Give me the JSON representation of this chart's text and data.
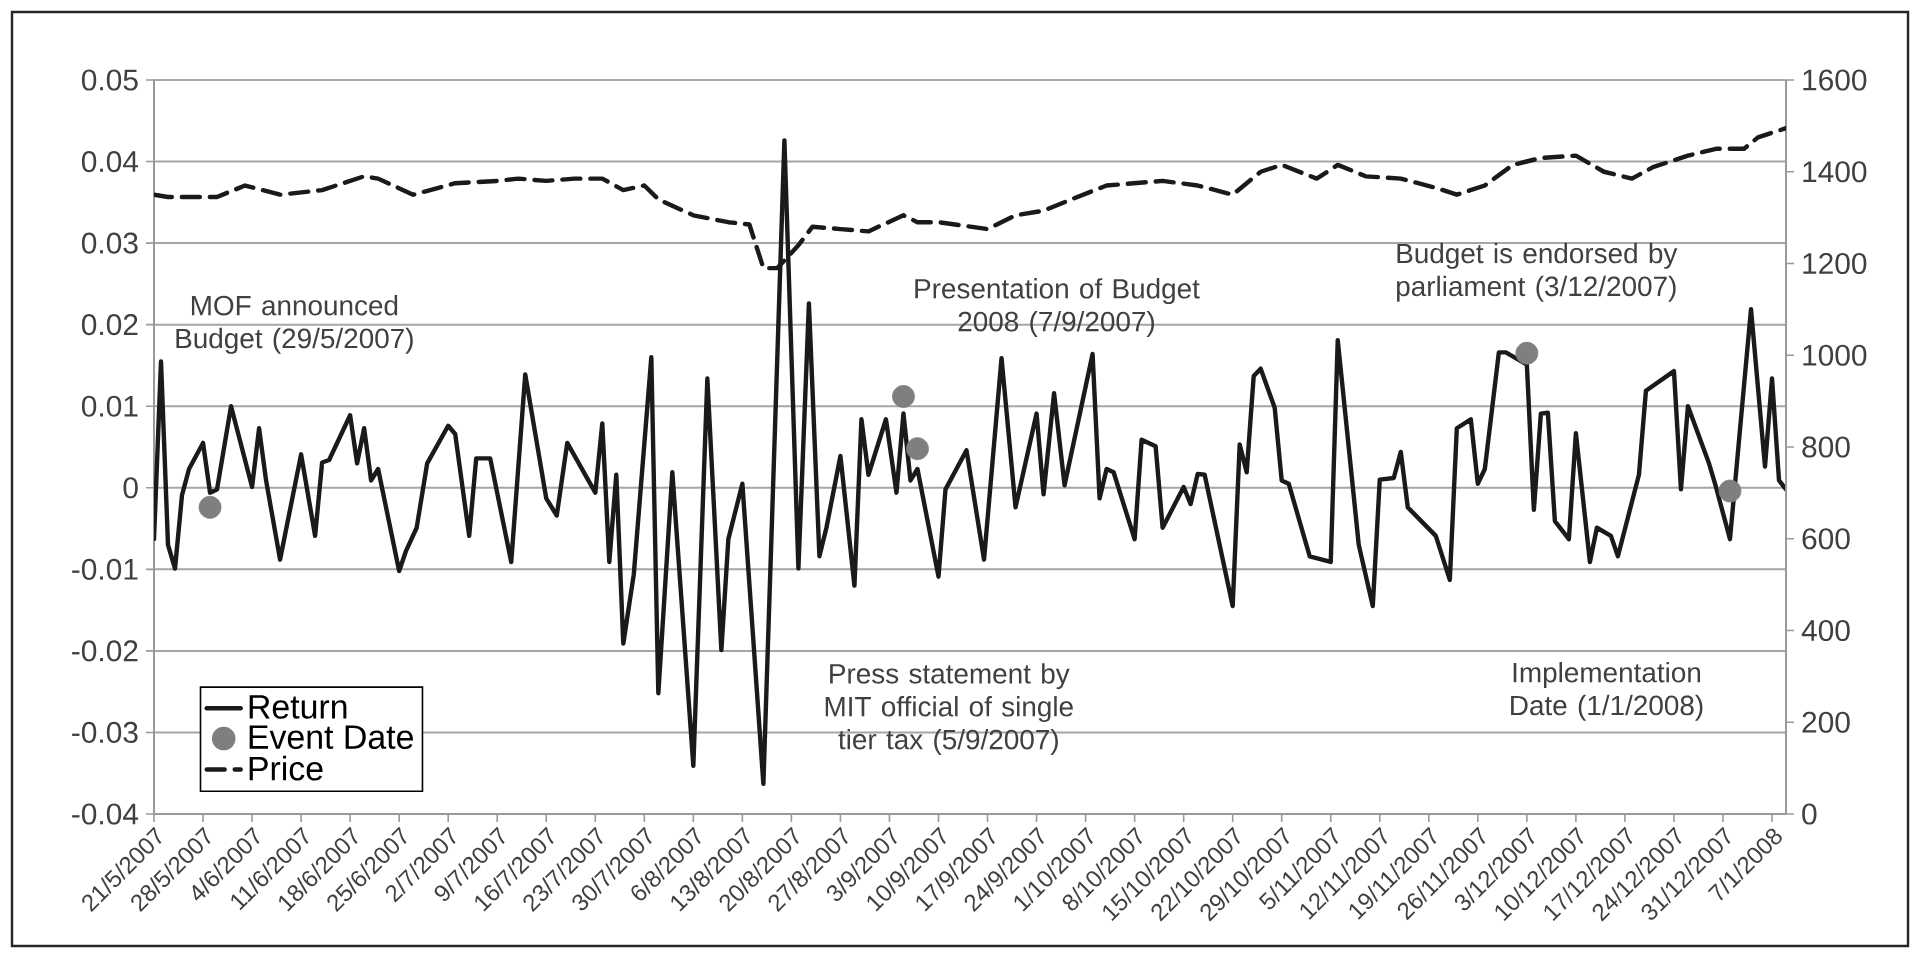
{
  "chart_data": {
    "type": "line",
    "xlim": [
      "2007-05-21",
      "2008-01-09"
    ],
    "xticks": [
      {
        "value": "2007-05-21",
        "label": "21/5/2007"
      },
      {
        "value": "2007-05-28",
        "label": "28/5/2007"
      },
      {
        "value": "2007-06-04",
        "label": "4/6/2007"
      },
      {
        "value": "2007-06-11",
        "label": "11/6/2007"
      },
      {
        "value": "2007-06-18",
        "label": "18/6/2007"
      },
      {
        "value": "2007-06-25",
        "label": "25/6/2007"
      },
      {
        "value": "2007-07-02",
        "label": "2/7/2007"
      },
      {
        "value": "2007-07-09",
        "label": "9/7/2007"
      },
      {
        "value": "2007-07-16",
        "label": "16/7/2007"
      },
      {
        "value": "2007-07-23",
        "label": "23/7/2007"
      },
      {
        "value": "2007-07-30",
        "label": "30/7/2007"
      },
      {
        "value": "2007-08-06",
        "label": "6/8/2007"
      },
      {
        "value": "2007-08-13",
        "label": "13/8/2007"
      },
      {
        "value": "2007-08-20",
        "label": "20/8/2007"
      },
      {
        "value": "2007-08-27",
        "label": "27/8/2007"
      },
      {
        "value": "2007-09-03",
        "label": "3/9/2007"
      },
      {
        "value": "2007-09-10",
        "label": "10/9/2007"
      },
      {
        "value": "2007-09-17",
        "label": "17/9/2007"
      },
      {
        "value": "2007-09-24",
        "label": "24/9/2007"
      },
      {
        "value": "2007-10-01",
        "label": "1/10/2007"
      },
      {
        "value": "2007-10-08",
        "label": "8/10/2007"
      },
      {
        "value": "2007-10-15",
        "label": "15/10/2007"
      },
      {
        "value": "2007-10-22",
        "label": "22/10/2007"
      },
      {
        "value": "2007-10-29",
        "label": "29/10/2007"
      },
      {
        "value": "2007-11-05",
        "label": "5/11/2007"
      },
      {
        "value": "2007-11-12",
        "label": "12/11/2007"
      },
      {
        "value": "2007-11-19",
        "label": "19/11/2007"
      },
      {
        "value": "2007-11-26",
        "label": "26/11/2007"
      },
      {
        "value": "2007-12-03",
        "label": "3/12/2007"
      },
      {
        "value": "2007-12-10",
        "label": "10/12/2007"
      },
      {
        "value": "2007-12-17",
        "label": "17/12/2007"
      },
      {
        "value": "2007-12-24",
        "label": "24/12/2007"
      },
      {
        "value": "2007-12-31",
        "label": "31/12/2007"
      },
      {
        "value": "2008-01-07",
        "label": "7/1/2008"
      }
    ],
    "ylim": [
      -0.04,
      0.05
    ],
    "yticks": [
      -0.04,
      -0.03,
      -0.02,
      -0.01,
      0,
      0.01,
      0.02,
      0.03,
      0.04,
      0.05
    ],
    "y2lim": [
      0,
      1600
    ],
    "y2ticks": [
      0,
      200,
      400,
      600,
      800,
      1000,
      1200,
      1400,
      1600
    ],
    "grid": "y",
    "legend": "bottom left",
    "annotations": [
      "MOF announced Budget (29/5/2007)",
      "Presentation of Budget 2008 (7/9/2007)",
      "Budget is endorsed by parliament (3/12/2007)",
      "Press statement by MIT official of single tier tax (5/9/2007)",
      "Implementation Date (1/1/2008)"
    ],
    "series": [
      {
        "name": "Return",
        "color": "#1a1a1a",
        "x": [
          "2007-05-21",
          "2007-05-22",
          "2007-05-23",
          "2007-05-24",
          "2007-05-25",
          "2007-05-26",
          "2007-05-28",
          "2007-05-29",
          "2007-05-30",
          "2007-06-01",
          "2007-06-04",
          "2007-06-05",
          "2007-06-06",
          "2007-06-08",
          "2007-06-11",
          "2007-06-13",
          "2007-06-14",
          "2007-06-15",
          "2007-06-18",
          "2007-06-19",
          "2007-06-20",
          "2007-06-21",
          "2007-06-22",
          "2007-06-25",
          "2007-06-26",
          "2007-06-27T12:00",
          "2007-06-29",
          "2007-07-02",
          "2007-07-03",
          "2007-07-05",
          "2007-07-06",
          "2007-07-08",
          "2007-07-11",
          "2007-07-13",
          "2007-07-16",
          "2007-07-17T12:00",
          "2007-07-19",
          "2007-07-23",
          "2007-07-24",
          "2007-07-25",
          "2007-07-26",
          "2007-07-27",
          "2007-07-28T12:00",
          "2007-07-31",
          "2007-08-01",
          "2007-08-03",
          "2007-08-06",
          "2007-08-08",
          "2007-08-10",
          "2007-08-11",
          "2007-08-13",
          "2007-08-16",
          "2007-08-19",
          "2007-08-21",
          "2007-08-22T12:00",
          "2007-08-24",
          "2007-08-25",
          "2007-08-27",
          "2007-08-29",
          "2007-08-30",
          "2007-08-31",
          "2007-09-02T12:00",
          "2007-09-04",
          "2007-09-05",
          "2007-09-06",
          "2007-09-07",
          "2007-09-10",
          "2007-09-11",
          "2007-09-14",
          "2007-09-16T12:00",
          "2007-09-19",
          "2007-09-21",
          "2007-09-24",
          "2007-09-25",
          "2007-09-26T12:00",
          "2007-09-28",
          "2007-10-02",
          "2007-10-03",
          "2007-10-04",
          "2007-10-05",
          "2007-10-08",
          "2007-10-09",
          "2007-10-11",
          "2007-10-12",
          "2007-10-15",
          "2007-10-16",
          "2007-10-17",
          "2007-10-18",
          "2007-10-22",
          "2007-10-23",
          "2007-10-24",
          "2007-10-25",
          "2007-10-26",
          "2007-10-28",
          "2007-10-29",
          "2007-10-30",
          "2007-11-02",
          "2007-11-05",
          "2007-11-06",
          "2007-11-09",
          "2007-11-11",
          "2007-11-12",
          "2007-11-14",
          "2007-11-15",
          "2007-11-16",
          "2007-11-20",
          "2007-11-22",
          "2007-11-23",
          "2007-11-25",
          "2007-11-26",
          "2007-11-27",
          "2007-11-29",
          "2007-11-30",
          "2007-12-03",
          "2007-12-04",
          "2007-12-05",
          "2007-12-06",
          "2007-12-07",
          "2007-12-09",
          "2007-12-10",
          "2007-12-12",
          "2007-12-13",
          "2007-12-15",
          "2007-12-16",
          "2007-12-19",
          "2007-12-20",
          "2007-12-24",
          "2007-12-25",
          "2007-12-26",
          "2007-12-29",
          "2007-12-30",
          "2008-01-01",
          "2008-01-04",
          "2008-01-06",
          "2008-01-07",
          "2008-01-08",
          "2008-01-09"
        ],
        "values": [
          -0.0063,
          0.0155,
          -0.007,
          -0.0099,
          -0.0009,
          0.0023,
          0.0055,
          -0.0006,
          -0.0002,
          0.01,
          0.0001,
          0.0073,
          0.0009,
          -0.0088,
          0.0041,
          -0.0059,
          0.0031,
          0.0034,
          0.0089,
          0.003,
          0.0073,
          0.0009,
          0.0023,
          -0.0102,
          -0.0077,
          -0.0049,
          0.003,
          0.0076,
          0.0066,
          -0.0059,
          0.0036,
          0.0036,
          -0.0091,
          0.0139,
          -0.0013,
          -0.0034,
          0.0055,
          -0.0006,
          0.0079,
          -0.0091,
          0.0016,
          -0.0191,
          -0.0106,
          0.016,
          -0.0252,
          0.0019,
          -0.0341,
          0.0134,
          -0.0199,
          -0.0063,
          0.0005,
          -0.0363,
          0.0426,
          -0.0099,
          0.0226,
          -0.0084,
          -0.0049,
          0.0039,
          -0.012,
          0.0084,
          0.0016,
          0.0084,
          -0.0006,
          0.0091,
          0.0009,
          0.0023,
          -0.0109,
          -0.0002,
          0.0046,
          -0.0088,
          0.0159,
          -0.0024,
          0.0091,
          -0.0008,
          0.0116,
          0.0003,
          0.0164,
          -0.0013,
          0.0023,
          0.0019,
          -0.0063,
          0.0059,
          0.0051,
          -0.0049,
          0.0001,
          -0.002,
          0.0017,
          0.0016,
          -0.0145,
          0.0053,
          0.0019,
          0.0137,
          0.0146,
          0.0098,
          0.0009,
          0.0005,
          -0.0084,
          -0.0091,
          0.0181,
          -0.007,
          -0.0145,
          0.001,
          0.0012,
          0.0044,
          -0.0024,
          -0.0059,
          -0.0113,
          0.0073,
          0.0084,
          0.0005,
          0.0023,
          0.0166,
          0.0166,
          0.0151,
          -0.0027,
          0.0091,
          0.0092,
          -0.0041,
          -0.0063,
          0.0067,
          -0.0091,
          -0.0049,
          -0.0059,
          -0.0084,
          0.0016,
          0.0119,
          0.0143,
          -0.0002,
          0.01,
          0.003,
          0.0001,
          -0.0063,
          0.0219,
          0.0026,
          0.0134,
          0.0009,
          -0.0002
        ]
      },
      {
        "name": "Event Date",
        "type": "scatter",
        "marker": "circle",
        "color": "#7f7f7f",
        "x": [
          "2007-05-29",
          "2007-09-05",
          "2007-09-07",
          "2007-12-03",
          "2008-01-01"
        ],
        "values": [
          -0.0024,
          0.0112,
          0.0048,
          0.0165,
          -0.0004
        ]
      },
      {
        "name": "Price",
        "axis": "y2",
        "line_style": "dashed",
        "color": "#1a1a1a",
        "x": [
          "2007-05-21",
          "2007-05-23",
          "2007-05-30",
          "2007-06-03",
          "2007-06-08",
          "2007-06-14",
          "2007-06-20",
          "2007-06-22",
          "2007-06-27",
          "2007-07-03",
          "2007-07-09",
          "2007-07-12",
          "2007-07-16",
          "2007-07-20",
          "2007-07-24",
          "2007-07-27",
          "2007-07-30",
          "2007-08-01",
          "2007-08-06",
          "2007-08-11",
          "2007-08-14",
          "2007-08-16",
          "2007-08-18",
          "2007-08-21",
          "2007-08-23",
          "2007-08-27",
          "2007-08-31",
          "2007-09-05",
          "2007-09-07",
          "2007-09-10",
          "2007-09-17",
          "2007-09-21",
          "2007-09-25",
          "2007-09-29",
          "2007-10-04",
          "2007-10-12",
          "2007-10-17",
          "2007-10-22",
          "2007-10-26",
          "2007-10-29",
          "2007-11-03",
          "2007-11-06",
          "2007-11-10",
          "2007-11-15",
          "2007-11-20",
          "2007-11-23",
          "2007-11-27",
          "2007-12-01",
          "2007-12-05",
          "2007-12-10",
          "2007-12-14",
          "2007-12-18",
          "2007-12-21",
          "2007-12-26",
          "2007-12-30",
          "2008-01-03",
          "2008-01-05",
          "2008-01-09"
        ],
        "values": [
          1350,
          1345,
          1345,
          1370,
          1350,
          1360,
          1390,
          1385,
          1350,
          1375,
          1380,
          1385,
          1380,
          1385,
          1385,
          1360,
          1370,
          1340,
          1305,
          1290,
          1285,
          1190,
          1190,
          1240,
          1280,
          1275,
          1270,
          1305,
          1290,
          1290,
          1275,
          1305,
          1315,
          1340,
          1370,
          1380,
          1370,
          1350,
          1400,
          1415,
          1385,
          1415,
          1390,
          1385,
          1365,
          1350,
          1370,
          1415,
          1430,
          1435,
          1400,
          1385,
          1410,
          1435,
          1450,
          1450,
          1475,
          1495
        ]
      }
    ]
  }
}
